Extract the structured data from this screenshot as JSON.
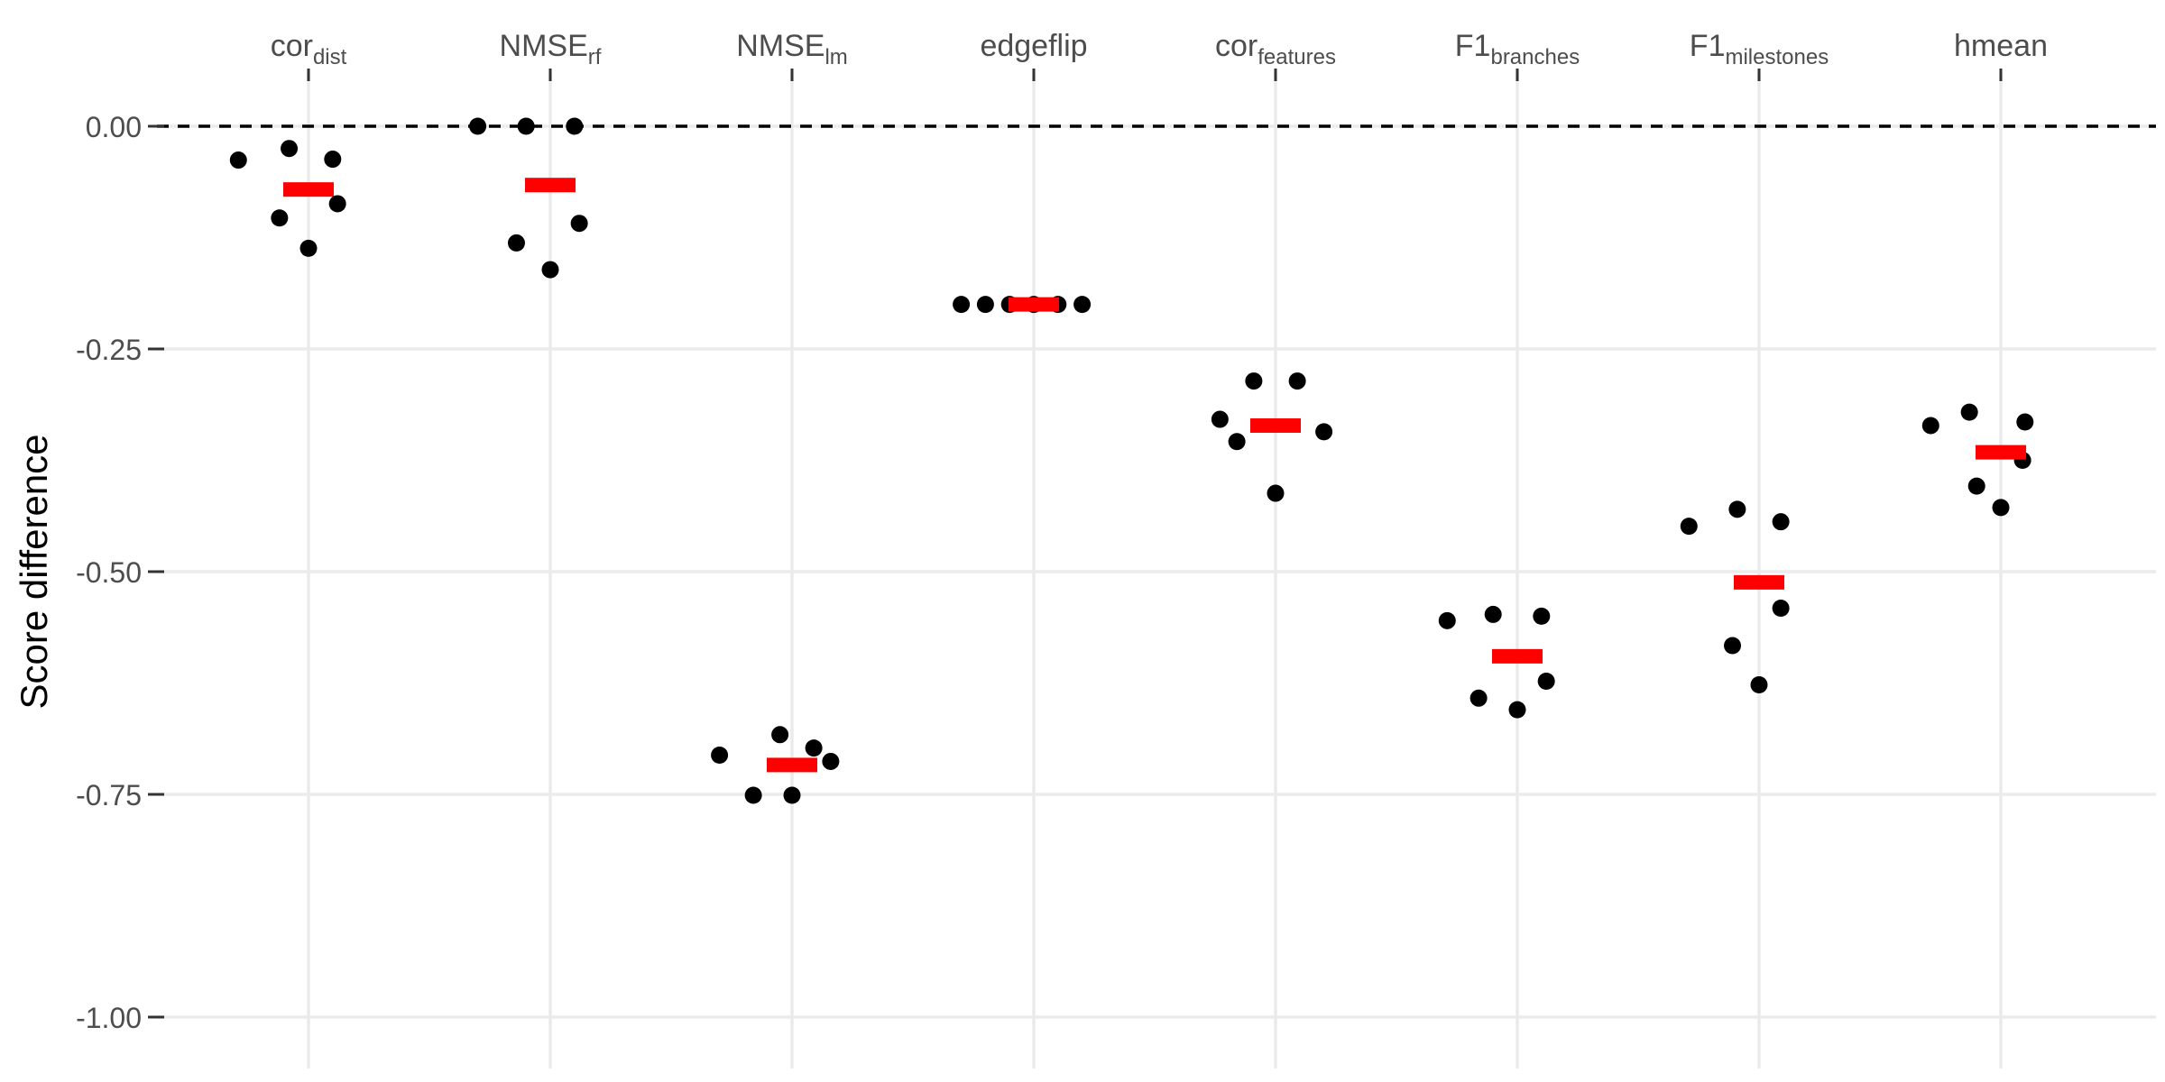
{
  "chart_data": {
    "type": "scatter",
    "ylabel": "Score difference",
    "xlabel": "",
    "ylim": [
      -1.05,
      0.05
    ],
    "y_ticks": [
      "0.00",
      "-0.25",
      "-0.50",
      "-0.75",
      "-1.00"
    ],
    "y_tick_values": [
      0.0,
      -0.25,
      -0.5,
      -0.75,
      -1.0
    ],
    "x_axis_position": "top",
    "grid": true,
    "reference_line": {
      "y": 0.0,
      "style": "dashed",
      "color": "#000000"
    },
    "point_color": "#000000",
    "mean_color": "#ff0000",
    "categories": [
      {
        "base": "cor",
        "sub": "dist"
      },
      {
        "base": "NMSE",
        "sub": "rf"
      },
      {
        "base": "NMSE",
        "sub": "lm"
      },
      {
        "base": "edgeflip",
        "sub": ""
      },
      {
        "base": "cor",
        "sub": "features"
      },
      {
        "base": "F1",
        "sub": "branches"
      },
      {
        "base": "F1",
        "sub": "milestones"
      },
      {
        "base": "hmean",
        "sub": ""
      }
    ],
    "points": [
      {
        "category": 0,
        "offset": -0.29,
        "y": -0.038
      },
      {
        "category": 0,
        "offset": -0.12,
        "y": -0.103
      },
      {
        "category": 0,
        "offset": -0.08,
        "y": -0.025
      },
      {
        "category": 0,
        "offset": 0.0,
        "y": -0.137
      },
      {
        "category": 0,
        "offset": 0.1,
        "y": -0.037
      },
      {
        "category": 0,
        "offset": 0.12,
        "y": -0.087
      },
      {
        "category": 1,
        "offset": -0.3,
        "y": 0.0
      },
      {
        "category": 1,
        "offset": -0.14,
        "y": -0.131
      },
      {
        "category": 1,
        "offset": -0.1,
        "y": 0.0
      },
      {
        "category": 1,
        "offset": 0.0,
        "y": -0.161
      },
      {
        "category": 1,
        "offset": 0.1,
        "y": 0.0
      },
      {
        "category": 1,
        "offset": 0.12,
        "y": -0.109
      },
      {
        "category": 2,
        "offset": -0.3,
        "y": -0.706
      },
      {
        "category": 2,
        "offset": -0.16,
        "y": -0.751
      },
      {
        "category": 2,
        "offset": -0.05,
        "y": -0.683
      },
      {
        "category": 2,
        "offset": 0.0,
        "y": -0.751
      },
      {
        "category": 2,
        "offset": 0.09,
        "y": -0.698
      },
      {
        "category": 2,
        "offset": 0.16,
        "y": -0.713
      },
      {
        "category": 3,
        "offset": -0.3,
        "y": -0.2
      },
      {
        "category": 3,
        "offset": -0.2,
        "y": -0.2
      },
      {
        "category": 3,
        "offset": -0.1,
        "y": -0.2
      },
      {
        "category": 3,
        "offset": 0.0,
        "y": -0.2
      },
      {
        "category": 3,
        "offset": 0.1,
        "y": -0.2
      },
      {
        "category": 3,
        "offset": 0.2,
        "y": -0.2
      },
      {
        "category": 4,
        "offset": -0.23,
        "y": -0.329
      },
      {
        "category": 4,
        "offset": -0.16,
        "y": -0.354
      },
      {
        "category": 4,
        "offset": -0.09,
        "y": -0.286
      },
      {
        "category": 4,
        "offset": 0.0,
        "y": -0.412
      },
      {
        "category": 4,
        "offset": 0.09,
        "y": -0.286
      },
      {
        "category": 4,
        "offset": 0.2,
        "y": -0.343
      },
      {
        "category": 5,
        "offset": -0.29,
        "y": -0.555
      },
      {
        "category": 5,
        "offset": -0.16,
        "y": -0.642
      },
      {
        "category": 5,
        "offset": -0.1,
        "y": -0.548
      },
      {
        "category": 5,
        "offset": 0.0,
        "y": -0.655
      },
      {
        "category": 5,
        "offset": 0.1,
        "y": -0.55
      },
      {
        "category": 5,
        "offset": 0.12,
        "y": -0.623
      },
      {
        "category": 6,
        "offset": -0.29,
        "y": -0.449
      },
      {
        "category": 6,
        "offset": -0.11,
        "y": -0.583
      },
      {
        "category": 6,
        "offset": -0.09,
        "y": -0.43
      },
      {
        "category": 6,
        "offset": 0.0,
        "y": -0.627
      },
      {
        "category": 6,
        "offset": 0.09,
        "y": -0.444
      },
      {
        "category": 6,
        "offset": 0.09,
        "y": -0.541
      },
      {
        "category": 7,
        "offset": -0.29,
        "y": -0.336
      },
      {
        "category": 7,
        "offset": -0.1,
        "y": -0.404
      },
      {
        "category": 7,
        "offset": -0.13,
        "y": -0.321
      },
      {
        "category": 7,
        "offset": 0.0,
        "y": -0.428
      },
      {
        "category": 7,
        "offset": 0.09,
        "y": -0.375
      },
      {
        "category": 7,
        "offset": 0.1,
        "y": -0.332
      }
    ],
    "means": [
      -0.071,
      -0.066,
      -0.717,
      -0.2,
      -0.336,
      -0.595,
      -0.512,
      -0.366
    ]
  }
}
